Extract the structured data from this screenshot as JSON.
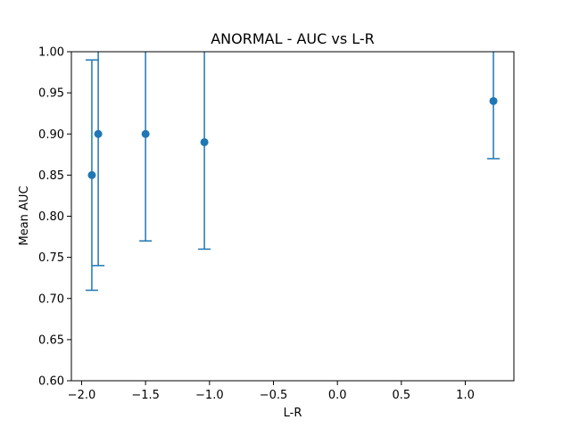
{
  "chart_data": {
    "type": "scatter",
    "title": "ANORMAL - AUC vs L-R",
    "xlabel": "L-R",
    "ylabel": "Mean AUC",
    "xlim": [
      -2.08,
      1.38
    ],
    "ylim": [
      0.6,
      1.0
    ],
    "xticks": [
      -2.0,
      -1.5,
      -1.0,
      -0.5,
      0.0,
      0.5,
      1.0
    ],
    "xtick_labels": [
      "−2.0",
      "−1.5",
      "−1.0",
      "−0.5",
      "0.0",
      "0.5",
      "1.0"
    ],
    "yticks": [
      0.6,
      0.65,
      0.7,
      0.75,
      0.8,
      0.85,
      0.9,
      0.95,
      1.0
    ],
    "ytick_labels": [
      "0.60",
      "0.65",
      "0.70",
      "0.75",
      "0.80",
      "0.85",
      "0.90",
      "0.95",
      "1.00"
    ],
    "grid": false,
    "color": "#1f77b4",
    "points": [
      {
        "x": -1.92,
        "y": 0.85,
        "err_low": 0.71,
        "err_high": 0.99
      },
      {
        "x": -1.87,
        "y": 0.9,
        "err_low": 0.74,
        "err_high": 1.06
      },
      {
        "x": -1.5,
        "y": 0.9,
        "err_low": 0.77,
        "err_high": 1.03
      },
      {
        "x": -1.04,
        "y": 0.89,
        "err_low": 0.76,
        "err_high": 1.02
      },
      {
        "x": 1.22,
        "y": 0.94,
        "err_low": 0.87,
        "err_high": 1.01
      }
    ]
  }
}
